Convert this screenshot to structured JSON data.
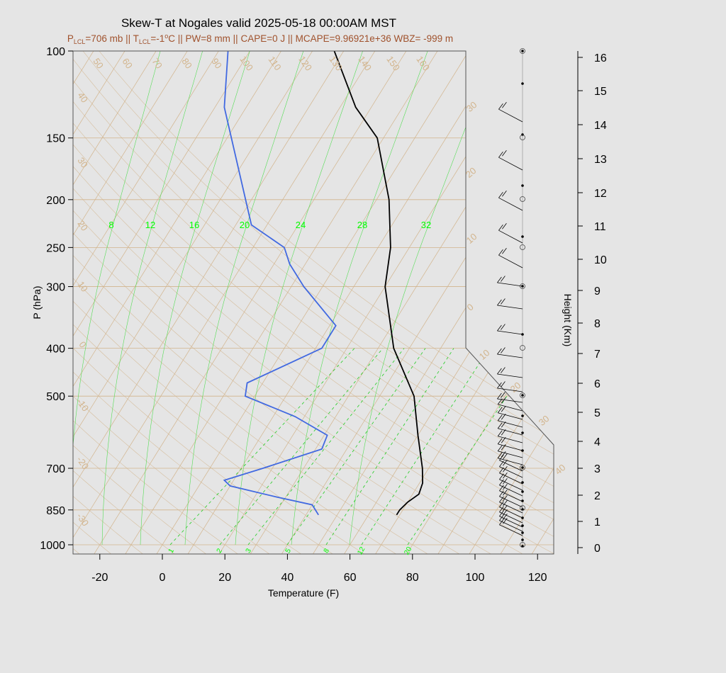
{
  "title": "Skew-T at Nogales valid 2025-05-18 00:00AM MST",
  "subtitle": {
    "plcl_sym": "P",
    "plcl_sub": "LCL",
    "plcl_val": "=706 mb || ",
    "tlcl_sym": "T",
    "tlcl_sub": "LCL",
    "tlcl_val": "=-1",
    "deg": "o",
    "rest": "C || PW=8 mm || CAPE=0 J || MCAPE=9.96921e+36 WBZ= -999 m"
  },
  "chart_data": {
    "type": "skew-t",
    "xlabel": "Temperature (F)",
    "ylabel": "P (hPa)",
    "y2label": "Height (Km)",
    "x_ticks": [
      "-20",
      "0",
      "20",
      "40",
      "60",
      "80",
      "100",
      "120"
    ],
    "p_ticks": [
      "100",
      "150",
      "200",
      "250",
      "300",
      "400",
      "500",
      "700",
      "850",
      "1000"
    ],
    "height_ticks": [
      "0",
      "1",
      "2",
      "3",
      "4",
      "5",
      "6",
      "7",
      "8",
      "9",
      "10",
      "11",
      "12",
      "13",
      "14",
      "15",
      "16"
    ],
    "isotherm_labels_top": [
      "50",
      "60",
      "70",
      "80",
      "90",
      "100",
      "110",
      "120",
      "130",
      "140",
      "150",
      "160"
    ],
    "isotherm_labels_left": [
      "40",
      "30",
      "20",
      "10",
      "0",
      "-10",
      "-20",
      "-30"
    ],
    "isotherm_labels_right": [
      "30",
      "20",
      "10",
      "0",
      "10",
      "20",
      "30",
      "40"
    ],
    "theta_e_labels": [
      "8",
      "12",
      "16",
      "20",
      "24",
      "28",
      "32"
    ],
    "mixing_ratio_labels": [
      "1",
      "2",
      "3",
      "5",
      "8",
      "12",
      "20"
    ],
    "colors": {
      "temperature": "#000000",
      "dewpoint": "#4169e1",
      "isotherm": "#d2b48c",
      "mixing": "#00cc00",
      "background": "#e5e5e5"
    },
    "temperature_profile": [
      {
        "p": 870,
        "t_f": 69
      },
      {
        "p": 850,
        "t_f": 69
      },
      {
        "p": 820,
        "t_f": 70
      },
      {
        "p": 790,
        "t_f": 72
      },
      {
        "p": 750,
        "t_f": 71
      },
      {
        "p": 700,
        "t_f": 68
      },
      {
        "p": 600,
        "t_f": 60
      },
      {
        "p": 500,
        "t_f": 51
      },
      {
        "p": 400,
        "t_f": 35
      },
      {
        "p": 300,
        "t_f": 20
      },
      {
        "p": 250,
        "t_f": 14
      },
      {
        "p": 200,
        "t_f": 4
      },
      {
        "p": 150,
        "t_f": -12
      },
      {
        "p": 130,
        "t_f": -25
      },
      {
        "p": 100,
        "t_f": -43
      }
    ],
    "dewpoint_profile": [
      {
        "p": 870,
        "t_f": 44
      },
      {
        "p": 830,
        "t_f": 40
      },
      {
        "p": 800,
        "t_f": 27
      },
      {
        "p": 760,
        "t_f": 10
      },
      {
        "p": 740,
        "t_f": 7
      },
      {
        "p": 700,
        "t_f": 17
      },
      {
        "p": 640,
        "t_f": 32
      },
      {
        "p": 600,
        "t_f": 31
      },
      {
        "p": 550,
        "t_f": 17
      },
      {
        "p": 500,
        "t_f": -3
      },
      {
        "p": 470,
        "t_f": -5
      },
      {
        "p": 400,
        "t_f": 12
      },
      {
        "p": 360,
        "t_f": 12
      },
      {
        "p": 300,
        "t_f": -6
      },
      {
        "p": 270,
        "t_f": -15
      },
      {
        "p": 250,
        "t_f": -20
      },
      {
        "p": 225,
        "t_f": -35
      },
      {
        "p": 130,
        "t_f": -67
      },
      {
        "p": 100,
        "t_f": -77
      }
    ]
  }
}
